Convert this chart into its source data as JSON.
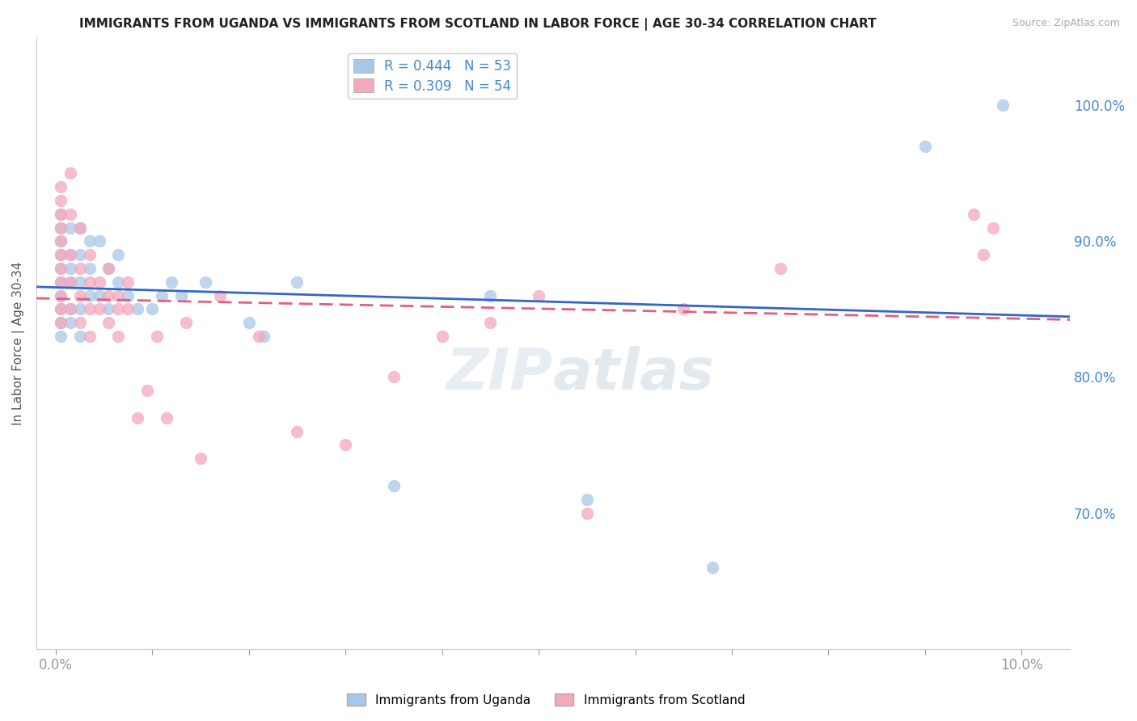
{
  "title": "IMMIGRANTS FROM UGANDA VS IMMIGRANTS FROM SCOTLAND IN LABOR FORCE | AGE 30-34 CORRELATION CHART",
  "source": "Source: ZipAtlas.com",
  "ylabel": "In Labor Force | Age 30-34",
  "right_yticks": [
    70.0,
    80.0,
    90.0,
    100.0
  ],
  "xlim": [
    -0.2,
    10.5
  ],
  "ylim": [
    60.0,
    105.0
  ],
  "legend_r_uganda": "0.444",
  "legend_n_uganda": "53",
  "legend_r_scotland": "0.309",
  "legend_n_scotland": "54",
  "uganda_color": "#a8c8e8",
  "scotland_color": "#f4a8bc",
  "uganda_line_color": "#3366cc",
  "scotland_line_color": "#e06080",
  "background_color": "#ffffff",
  "grid_color": "#dddddd",
  "right_label_color": "#4488cc",
  "title_color": "#222222",
  "uganda_x": [
    0.05,
    0.05,
    0.05,
    0.05,
    0.05,
    0.05,
    0.05,
    0.05,
    0.05,
    0.05,
    0.15,
    0.15,
    0.15,
    0.15,
    0.15,
    0.15,
    0.25,
    0.25,
    0.25,
    0.25,
    0.25,
    0.35,
    0.35,
    0.35,
    0.45,
    0.45,
    0.55,
    0.55,
    0.65,
    0.65,
    0.75,
    0.85,
    1.0,
    1.1,
    1.2,
    1.3,
    1.55,
    2.0,
    2.15,
    2.5,
    3.5,
    4.5,
    5.5,
    6.8,
    9.0,
    9.8
  ],
  "uganda_y": [
    85.0,
    86.0,
    87.0,
    88.0,
    89.0,
    90.0,
    91.0,
    92.0,
    84.0,
    83.0,
    84.0,
    85.0,
    87.0,
    89.0,
    91.0,
    88.0,
    83.0,
    85.0,
    87.0,
    89.0,
    91.0,
    86.0,
    88.0,
    90.0,
    86.0,
    90.0,
    85.0,
    88.0,
    87.0,
    89.0,
    86.0,
    85.0,
    85.0,
    86.0,
    87.0,
    86.0,
    87.0,
    84.0,
    83.0,
    87.0,
    72.0,
    86.0,
    71.0,
    66.0,
    97.0,
    100.0
  ],
  "scotland_x": [
    0.05,
    0.05,
    0.05,
    0.05,
    0.05,
    0.05,
    0.05,
    0.05,
    0.05,
    0.05,
    0.05,
    0.15,
    0.15,
    0.15,
    0.15,
    0.15,
    0.25,
    0.25,
    0.25,
    0.25,
    0.35,
    0.35,
    0.35,
    0.35,
    0.45,
    0.45,
    0.55,
    0.55,
    0.55,
    0.65,
    0.65,
    0.65,
    0.75,
    0.75,
    0.85,
    0.95,
    1.05,
    1.15,
    1.35,
    1.5,
    1.7,
    2.1,
    2.5,
    3.0,
    3.5,
    4.0,
    4.5,
    5.0,
    5.5,
    6.5,
    7.5,
    9.5,
    9.6,
    9.7
  ],
  "scotland_y": [
    84.0,
    85.0,
    86.0,
    87.0,
    88.0,
    89.0,
    90.0,
    91.0,
    92.0,
    93.0,
    94.0,
    85.0,
    87.0,
    89.0,
    92.0,
    95.0,
    84.0,
    86.0,
    88.0,
    91.0,
    83.0,
    85.0,
    87.0,
    89.0,
    85.0,
    87.0,
    84.0,
    86.0,
    88.0,
    83.0,
    85.0,
    86.0,
    85.0,
    87.0,
    77.0,
    79.0,
    83.0,
    77.0,
    84.0,
    74.0,
    86.0,
    83.0,
    76.0,
    75.0,
    80.0,
    83.0,
    84.0,
    86.0,
    70.0,
    85.0,
    88.0,
    92.0,
    89.0,
    91.0
  ]
}
